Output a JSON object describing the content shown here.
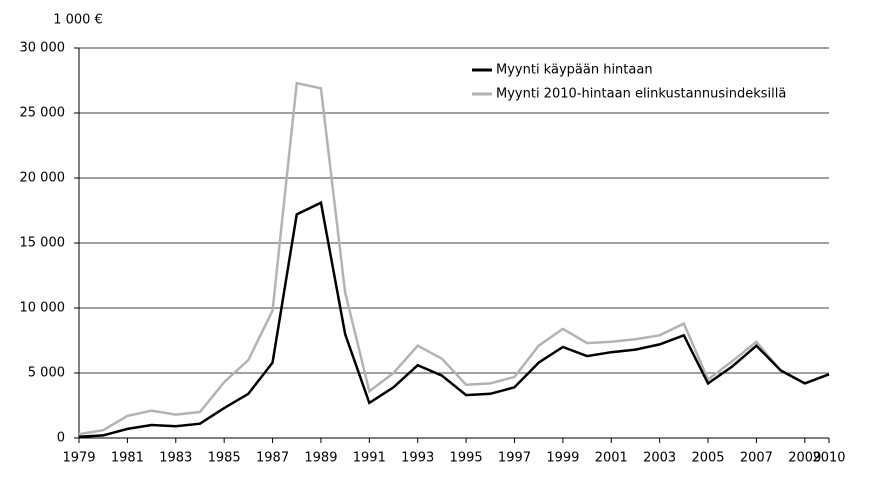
{
  "chart_data": {
    "type": "line",
    "y_axis_label": "1 000 €",
    "x": [
      1979,
      1980,
      1981,
      1982,
      1983,
      1984,
      1985,
      1986,
      1987,
      1988,
      1989,
      1990,
      1991,
      1992,
      1993,
      1994,
      1995,
      1996,
      1997,
      1998,
      1999,
      2000,
      2001,
      2002,
      2003,
      2004,
      2005,
      2006,
      2007,
      2008,
      2009,
      2010
    ],
    "series": [
      {
        "name": "Myynti käypään hintaan",
        "color": "#000000",
        "values": [
          100,
          200,
          700,
          1000,
          900,
          1100,
          2300,
          3400,
          5800,
          17200,
          18100,
          8000,
          2700,
          3900,
          5600,
          4800,
          3300,
          3400,
          3900,
          5800,
          7000,
          6300,
          6600,
          6800,
          7200,
          7900,
          4200,
          5500,
          7100,
          5200,
          4200,
          4900
        ]
      },
      {
        "name": "Myynti 2010-hintaan elinkustannusindeksillä",
        "color": "#b3b3b3",
        "values": [
          300,
          600,
          1700,
          2100,
          1800,
          2000,
          4300,
          6000,
          9800,
          27300,
          26900,
          11200,
          3600,
          5000,
          7100,
          6100,
          4100,
          4200,
          4700,
          7100,
          8400,
          7300,
          7400,
          7600,
          7900,
          8800,
          4500,
          5900,
          7400,
          5200,
          4200,
          4900
        ]
      }
    ],
    "xlim": [
      1979,
      2010
    ],
    "xticks": [
      1979,
      1981,
      1983,
      1985,
      1987,
      1989,
      1991,
      1993,
      1995,
      1997,
      1999,
      2001,
      2003,
      2005,
      2007,
      2009,
      2010
    ],
    "ylim": [
      0,
      30000
    ],
    "yticks": [
      0,
      {
        "value": 5000,
        "label": "5 000"
      },
      {
        "value": 10000,
        "label": "10 000"
      },
      {
        "value": 15000,
        "label": "15 000"
      },
      {
        "value": 20000,
        "label": "20 000"
      },
      {
        "value": 25000,
        "label": "25 000"
      },
      {
        "value": 30000,
        "label": "30 000"
      }
    ],
    "grid": true,
    "legend": "top-right"
  }
}
